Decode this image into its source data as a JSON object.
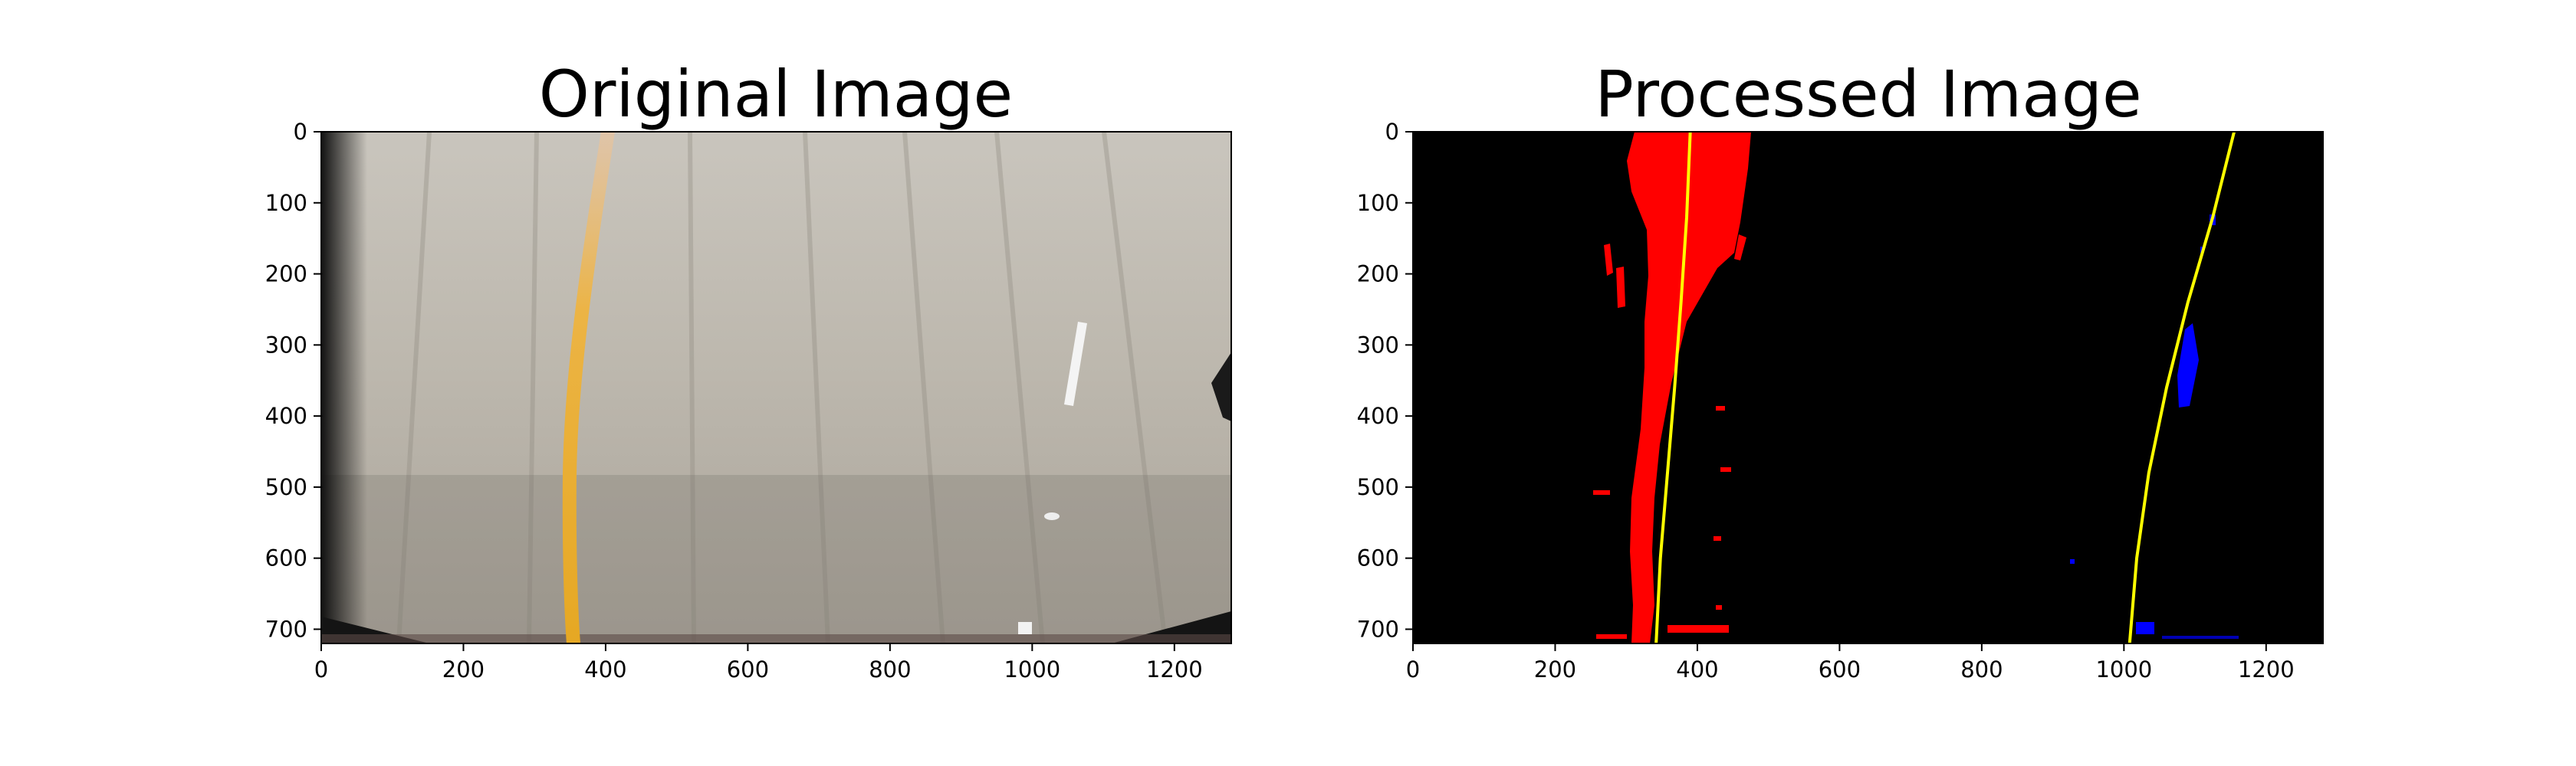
{
  "figure": {
    "panels": [
      {
        "title": "Original Image"
      },
      {
        "title": "Processed Image"
      }
    ]
  },
  "chart_data": [
    {
      "type": "image",
      "title": "Original Image",
      "xlabel": "",
      "ylabel": "",
      "xlim": [
        0,
        1280
      ],
      "ylim": [
        720,
        0
      ],
      "xticks": [
        0,
        200,
        400,
        600,
        800,
        1000,
        1200
      ],
      "yticks": [
        0,
        100,
        200,
        300,
        400,
        500,
        600,
        700
      ],
      "grid": false,
      "colors": {
        "road": "#b9b4aa",
        "lane_line_yellow": "#e9b13a",
        "lane_marking_white": "#f2f2f2",
        "border_dark": "#1b1b1b"
      }
    },
    {
      "type": "image",
      "title": "Processed Image",
      "xlabel": "",
      "ylabel": "",
      "xlim": [
        0,
        1280
      ],
      "ylim": [
        720,
        0
      ],
      "xticks": [
        0,
        200,
        400,
        600,
        800,
        1000,
        1200
      ],
      "yticks": [
        0,
        100,
        200,
        300,
        400,
        500,
        600,
        700
      ],
      "grid": false,
      "colors": {
        "background": "#000000",
        "left_lane_pixels": "#ff0000",
        "right_lane_pixels": "#0000ff",
        "fit_line": "#ffff00"
      },
      "series": [
        {
          "x": [
            390,
            385,
            377,
            368,
            358,
            348,
            342
          ],
          "y": [
            0,
            120,
            240,
            360,
            480,
            600,
            720
          ]
        },
        {
          "x": [
            1155,
            1125,
            1090,
            1060,
            1035,
            1018,
            1008
          ],
          "y": [
            0,
            120,
            240,
            360,
            480,
            600,
            720
          ]
        }
      ]
    }
  ]
}
